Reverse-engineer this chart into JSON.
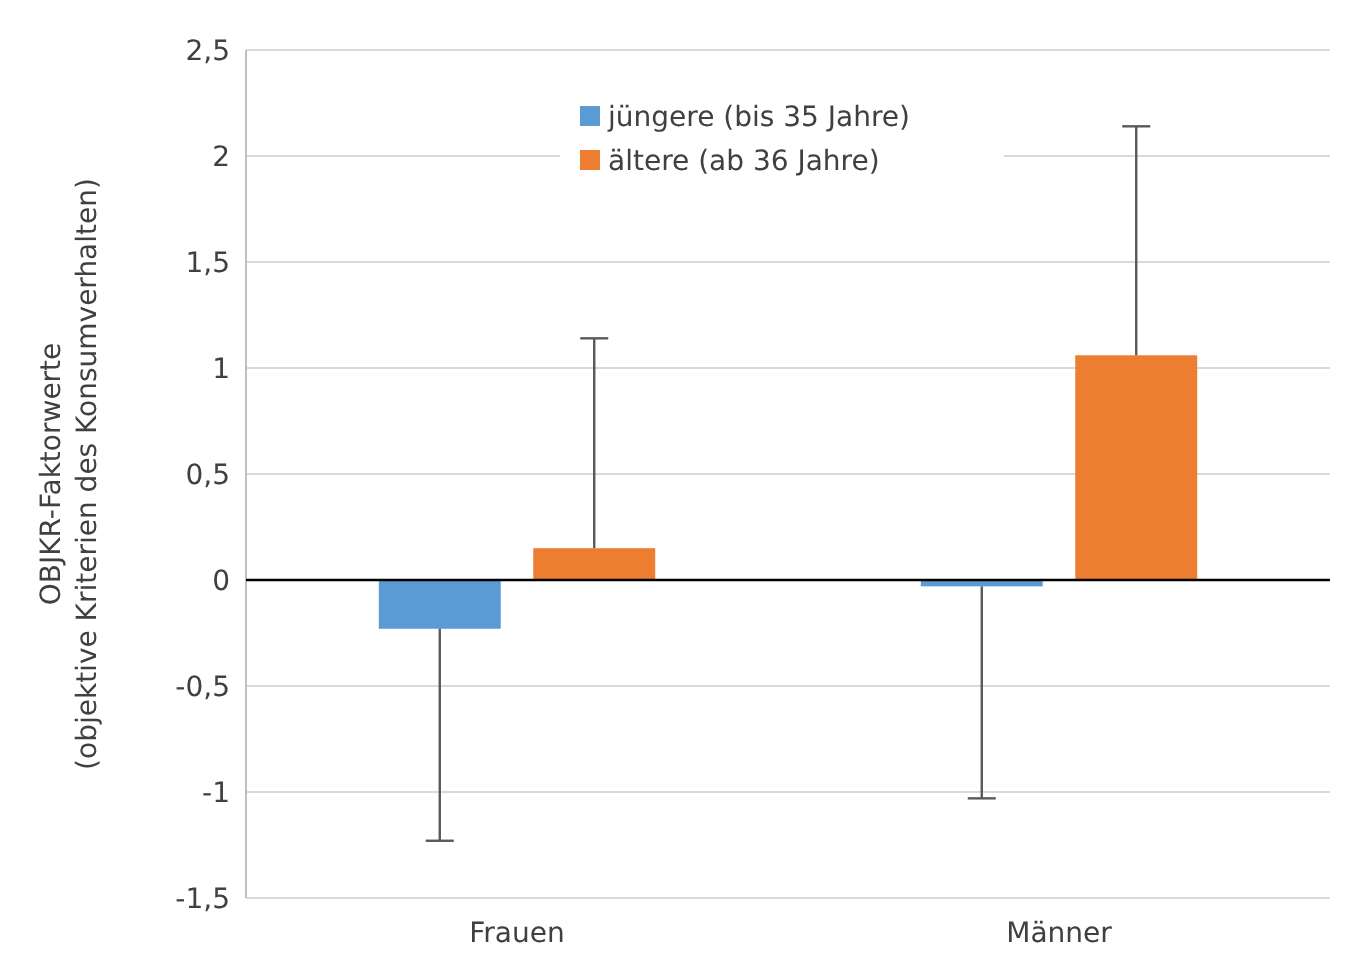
{
  "chart_data": {
    "type": "bar",
    "ylabel": "OBJKR-Faktorwerte\n(objektive Kriterien des Konsumverhalten)",
    "categories": [
      "Frauen",
      "Männer"
    ],
    "series": [
      {
        "name": "jüngere (bis 35 Jahre)",
        "color": "#5b9bd5",
        "values": [
          -0.23,
          -0.03
        ],
        "errors": [
          [
            -1.23,
            -0.23
          ],
          [
            -1.03,
            -0.03
          ]
        ]
      },
      {
        "name": "ältere (ab 36 Jahre)",
        "color": "#ed7d31",
        "values": [
          0.15,
          1.06
        ],
        "errors": [
          [
            0.15,
            1.14
          ],
          [
            1.06,
            2.14
          ]
        ]
      }
    ],
    "ylim": [
      -1.5,
      2.5
    ],
    "yticks": [
      {
        "value": -1.5,
        "label": "-1,5"
      },
      {
        "value": -1,
        "label": "-1"
      },
      {
        "value": -0.5,
        "label": "-0,5"
      },
      {
        "value": 0,
        "label": "0"
      },
      {
        "value": 0.5,
        "label": "0,5"
      },
      {
        "value": 1,
        "label": "1"
      },
      {
        "value": 1.5,
        "label": "1,5"
      },
      {
        "value": 2,
        "label": "2"
      },
      {
        "value": 2.5,
        "label": "2,5"
      }
    ],
    "grid": "y",
    "legend": "top"
  }
}
